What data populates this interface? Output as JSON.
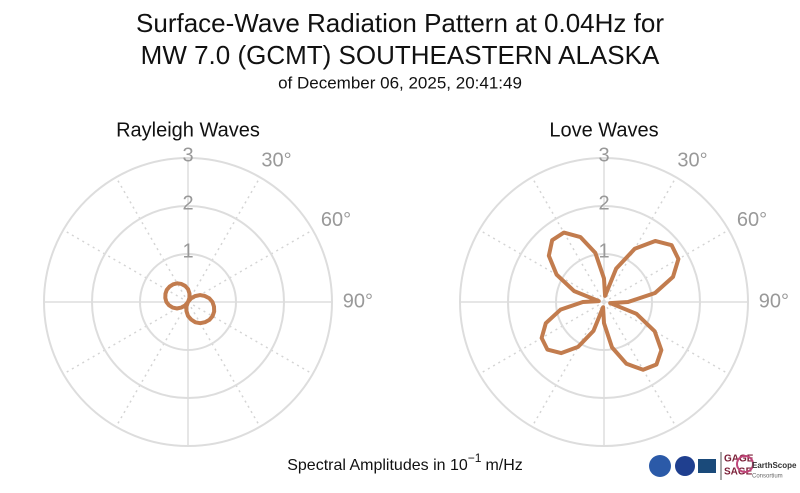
{
  "title": [
    "Surface-Wave Radiation Pattern at 0.04Hz for",
    "MW 7.0 (GCMT) SOUTHEASTERN ALASKA"
  ],
  "subtitle": "of December 06, 2025, 20:41:49",
  "chart_data": [
    {
      "type": "polar",
      "title": "Rayleigh Waves",
      "color": "#c27c4e",
      "theta": [
        0,
        10,
        20,
        30,
        40,
        50,
        60,
        70,
        80,
        90,
        100,
        110,
        120,
        130,
        140,
        150,
        160,
        170,
        180,
        190,
        200,
        210,
        220,
        230,
        240,
        250,
        260,
        270,
        280,
        290,
        300,
        310,
        320,
        330,
        340,
        350
      ],
      "values": [
        0.27,
        0.18,
        0.09,
        0,
        0.1,
        0.19,
        0.29,
        0.37,
        0.45,
        0.51,
        0.55,
        0.58,
        0.59,
        0.58,
        0.55,
        0.51,
        0.45,
        0.37,
        0.29,
        0.19,
        0.1,
        0,
        0.09,
        0.18,
        0.27,
        0.34,
        0.4,
        0.45,
        0.48,
        0.5,
        0.51,
        0.5,
        0.48,
        0.45,
        0.4,
        0.34
      ],
      "rlim": [
        0,
        3
      ],
      "rticks": [
        1,
        2,
        3
      ],
      "thetaticks": [
        {
          "value": 30,
          "label": "30°"
        },
        {
          "value": 60,
          "label": "60°"
        },
        {
          "value": 90,
          "label": "90°"
        }
      ]
    },
    {
      "type": "polar",
      "title": "Love Waves",
      "color": "#c27c4e",
      "theta": [
        0,
        10,
        20,
        30,
        40,
        50,
        60,
        70,
        80,
        90,
        100,
        110,
        120,
        130,
        140,
        150,
        160,
        170,
        180,
        190,
        200,
        210,
        220,
        230,
        240,
        250,
        260,
        270,
        280,
        290,
        300,
        310,
        320,
        330,
        340,
        350
      ],
      "values": [
        0.49,
        0.13,
        0.74,
        1.28,
        1.66,
        1.84,
        1.79,
        1.53,
        1.08,
        0.5,
        0.13,
        0.72,
        1.22,
        1.56,
        1.7,
        1.63,
        1.37,
        0.96,
        0.44,
        0.11,
        0.64,
        1.08,
        1.39,
        1.54,
        1.5,
        1.29,
        0.92,
        0.44,
        0.11,
        0.66,
        1.14,
        1.5,
        1.68,
        1.67,
        1.44,
        1.04
      ],
      "rlim": [
        0,
        3
      ],
      "rticks": [
        1,
        2,
        3
      ],
      "thetaticks": [
        {
          "value": 30,
          "label": "30°"
        },
        {
          "value": 60,
          "label": "60°"
        },
        {
          "value": 90,
          "label": "90°"
        }
      ]
    }
  ],
  "footer": {
    "text": "Spectral Amplitudes in 10",
    "exponent": "−1",
    "unit": "m/Hz"
  },
  "logos": [
    "GAGE",
    "SAGE",
    "EarthScope",
    "Consortium"
  ]
}
